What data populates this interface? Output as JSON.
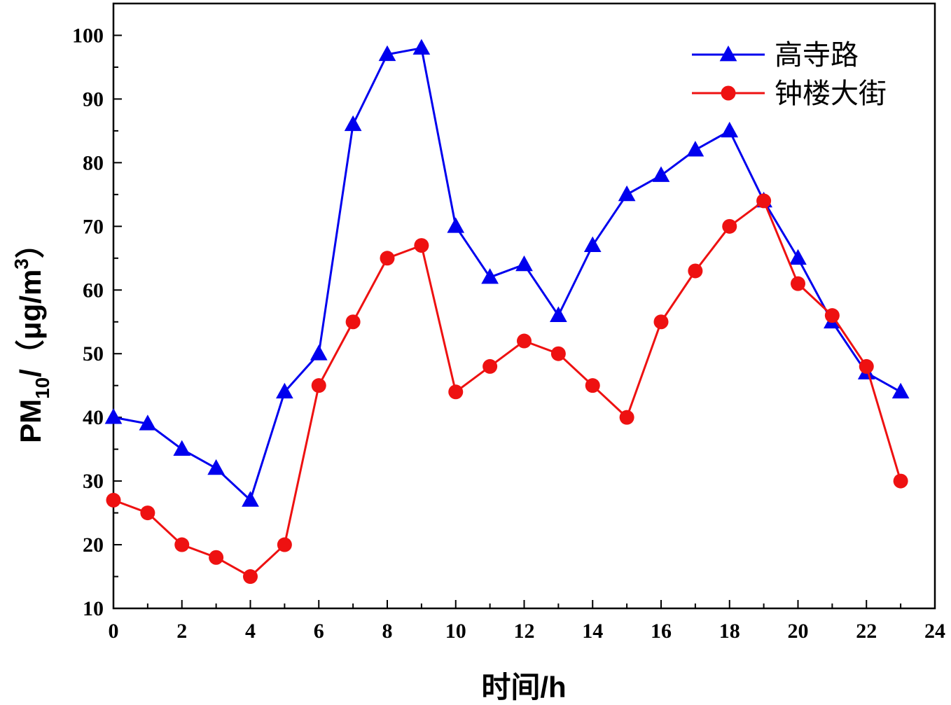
{
  "chart_data": {
    "type": "line",
    "title": "",
    "xlabel": "时间/h",
    "ylabel": {
      "main": "PM",
      "subscript": "10",
      "unit_prefix": "/（μg/m",
      "superscript": "3",
      "unit_suffix": "）"
    },
    "xlim": [
      0,
      24
    ],
    "ylim": [
      10,
      105
    ],
    "x_ticks": [
      "0",
      "2",
      "4",
      "6",
      "8",
      "10",
      "12",
      "14",
      "16",
      "18",
      "20",
      "22",
      "24"
    ],
    "y_ticks": [
      "10",
      "20",
      "30",
      "40",
      "50",
      "60",
      "70",
      "80",
      "90",
      "100"
    ],
    "legend_position": "top-right",
    "grid": false,
    "x": [
      0,
      1,
      2,
      3,
      4,
      5,
      6,
      7,
      8,
      9,
      10,
      11,
      12,
      13,
      14,
      15,
      16,
      17,
      18,
      19,
      20,
      21,
      22,
      23
    ],
    "series": [
      {
        "name": "高寺路",
        "color": "#0000ee",
        "marker": "triangle",
        "values": [
          40,
          39,
          35,
          32,
          27,
          44,
          50,
          86,
          97,
          98,
          70,
          62,
          64,
          56,
          67,
          75,
          78,
          82,
          85,
          74,
          65,
          55,
          47,
          44
        ]
      },
      {
        "name": "钟楼大街",
        "color": "#ee1111",
        "marker": "circle",
        "values": [
          27,
          25,
          20,
          18,
          15,
          20,
          45,
          55,
          65,
          67,
          44,
          48,
          52,
          50,
          45,
          40,
          55,
          63,
          70,
          74,
          61,
          56,
          48,
          30
        ]
      }
    ]
  }
}
